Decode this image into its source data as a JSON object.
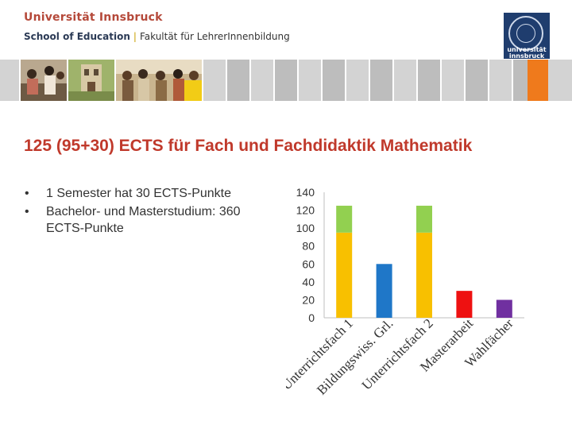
{
  "header": {
    "university": "Universität Innsbruck",
    "school": "School of Education",
    "separator": "|",
    "faculty": "Fakultät für LehrerInnenbildung",
    "logo_text_1": "universität",
    "logo_text_2": "innsbruck"
  },
  "colors": {
    "accent_red": "#c0392b",
    "tile_yellow": "#f2cc16",
    "tile_orange": "#ef7a1c",
    "bar_yellow": "#f8c000",
    "bar_green": "#92d050",
    "bar_blue": "#1f77c8",
    "bar_red": "#ee1111",
    "bar_purple": "#7030a0"
  },
  "slide": {
    "title": "125 (95+30) ECTS für Fach und Fachdidaktik Mathematik",
    "bullets": [
      "1 Semester hat 30 ECTS-Punkte",
      "Bachelor- und Masterstudium: 360 ECTS-Punkte"
    ]
  },
  "chart_data": {
    "type": "bar",
    "stacked": true,
    "categories": [
      "Unterrichtsfach 1",
      "Bildungswiss. Grl.",
      "Unterrichtsfach 2",
      "Masterarbeit",
      "Wahlfächer"
    ],
    "segments": [
      [
        {
          "value": 95,
          "color": "#f8c000"
        },
        {
          "value": 30,
          "color": "#92d050"
        }
      ],
      [
        {
          "value": 60,
          "color": "#1f77c8"
        }
      ],
      [
        {
          "value": 95,
          "color": "#f8c000"
        },
        {
          "value": 30,
          "color": "#92d050"
        }
      ],
      [
        {
          "value": 30,
          "color": "#ee1111"
        }
      ],
      [
        {
          "value": 20,
          "color": "#7030a0"
        }
      ]
    ],
    "yticks": [
      0,
      20,
      40,
      60,
      80,
      100,
      120,
      140
    ],
    "ylim": [
      0,
      140
    ],
    "grid": false,
    "legend": "none"
  }
}
